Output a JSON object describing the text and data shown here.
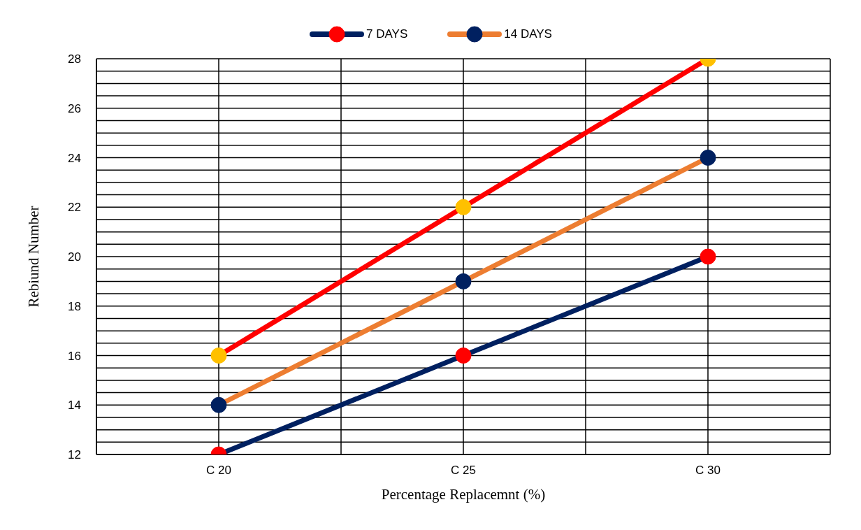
{
  "chart_data": {
    "type": "line",
    "xlabel": "Percentage Replacemnt (%)",
    "ylabel": "Rebiund Number",
    "categories": [
      "C 20",
      "C 25",
      "C 30"
    ],
    "series": [
      {
        "name": "7 DAYS",
        "color": "#002060",
        "colors": [
          "#ff0000",
          "#ff0000",
          "#ff0000"
        ],
        "values": [
          12,
          16,
          20
        ]
      },
      {
        "name": "14 DAYS",
        "color": "#ed7d31",
        "colors": [
          "#002060",
          "#002060",
          "#002060"
        ],
        "values": [
          14,
          19,
          24
        ]
      },
      {
        "color": "#ff0000",
        "colors": [
          "#ffc000",
          "#ffc000",
          "#ffc000"
        ],
        "values": [
          16,
          22,
          28
        ]
      }
    ],
    "ylim": [
      12,
      28
    ],
    "yticks": [
      12,
      {
        "value": 12.5,
        "label": null
      },
      {
        "value": 13,
        "label": null
      },
      {
        "value": 13.5,
        "label": null
      },
      14,
      {
        "value": 14.5,
        "label": null
      },
      {
        "value": 15,
        "label": null
      },
      {
        "value": 15.5,
        "label": null
      },
      16,
      {
        "value": 16.5,
        "label": null
      },
      {
        "value": 17,
        "label": null
      },
      {
        "value": 17.5,
        "label": null
      },
      18,
      {
        "value": 18.5,
        "label": null
      },
      {
        "value": 19,
        "label": null
      },
      {
        "value": 19.5,
        "label": null
      },
      20,
      {
        "value": 20.5,
        "label": null
      },
      {
        "value": 21,
        "label": null
      },
      {
        "value": 21.5,
        "label": null
      },
      22,
      {
        "value": 22.5,
        "label": null
      },
      {
        "value": 23,
        "label": null
      },
      {
        "value": 23.5,
        "label": null
      },
      24,
      {
        "value": 24.5,
        "label": null
      },
      {
        "value": 25,
        "label": null
      },
      {
        "value": 25.5,
        "label": null
      },
      26,
      {
        "value": 26.5,
        "label": null
      },
      {
        "value": 27,
        "label": null
      },
      {
        "value": 27.5,
        "label": null
      },
      28
    ],
    "grid": true,
    "legend": "top",
    "marker": "circle",
    "line_style": "solid"
  }
}
